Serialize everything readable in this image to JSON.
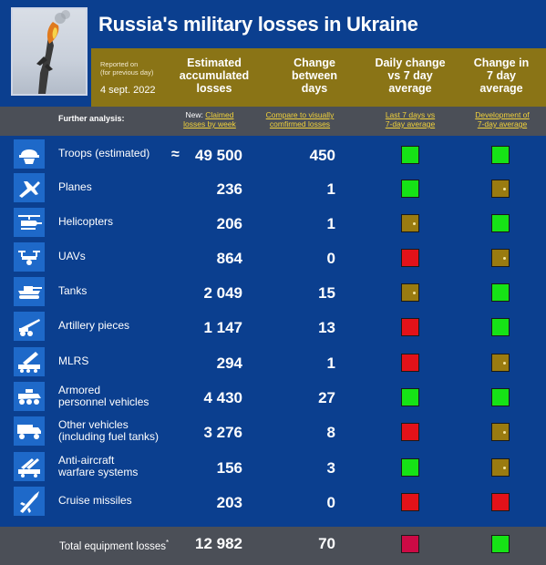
{
  "header": {
    "title": "Russia's military losses in Ukraine",
    "reported_on_line1": "Reported on",
    "reported_on_line2": "(for previous day)",
    "date": "4 sept. 2022",
    "col_estimated_l1": "Estimated",
    "col_estimated_l2": "accumulated",
    "col_estimated_l3": "losses",
    "col_change_l1": "Change",
    "col_change_l2": "between",
    "col_change_l3": "days",
    "col_daily_l1": "Daily change",
    "col_daily_l2": "vs 7 day",
    "col_daily_l3": "average",
    "col_change7_l1": "Change in",
    "col_change7_l2": "7 day",
    "col_change7_l3": "average"
  },
  "further": {
    "label": "Further analysis:",
    "new_prefix": "New:",
    "link1_l1": "Claimed",
    "link1_l2": "losses by week",
    "link2_l1": "Compare to visually",
    "link2_l2": "comfirmed losses",
    "link3_l1": "Last 7 days vs",
    "link3_l2": "7-day average",
    "link4_l1": "Development of",
    "link4_l2": "7-day average"
  },
  "rows": [
    {
      "icon": "soldier-helmet-icon",
      "label1": "Troops (estimated)",
      "label2": "",
      "approx": "≈",
      "value": "49 500",
      "change": "450",
      "daily": "green",
      "trend": "green"
    },
    {
      "icon": "fighter-jet-icon",
      "label1": "Planes",
      "label2": "",
      "approx": "",
      "value": "236",
      "change": "1",
      "daily": "green",
      "trend": "olive"
    },
    {
      "icon": "helicopter-icon",
      "label1": "Helicopters",
      "label2": "",
      "approx": "",
      "value": "206",
      "change": "1",
      "daily": "olive",
      "trend": "green"
    },
    {
      "icon": "drone-icon",
      "label1": "UAVs",
      "label2": "",
      "approx": "",
      "value": "864",
      "change": "0",
      "daily": "red",
      "trend": "olive"
    },
    {
      "icon": "tank-icon",
      "label1": "Tanks",
      "label2": "",
      "approx": "",
      "value": "2 049",
      "change": "15",
      "daily": "olive",
      "trend": "green"
    },
    {
      "icon": "artillery-icon",
      "label1": "Artillery pieces",
      "label2": "",
      "approx": "",
      "value": "1 147",
      "change": "13",
      "daily": "red",
      "trend": "green"
    },
    {
      "icon": "rocket-launcher-icon",
      "label1": "MLRS",
      "label2": "",
      "approx": "",
      "value": "294",
      "change": "1",
      "daily": "red",
      "trend": "olive"
    },
    {
      "icon": "armored-vehicle-icon",
      "label1": "Armored",
      "label2": "personnel vehicles",
      "approx": "",
      "value": "4 430",
      "change": "27",
      "daily": "green",
      "trend": "green"
    },
    {
      "icon": "truck-icon",
      "label1": "Other vehicles",
      "label2": "(including fuel tanks)",
      "approx": "",
      "value": "3 276",
      "change": "8",
      "daily": "red",
      "trend": "olive"
    },
    {
      "icon": "anti-aircraft-icon",
      "label1": "Anti-aircraft",
      "label2": "warfare systems",
      "approx": "",
      "value": "156",
      "change": "3",
      "daily": "green",
      "trend": "olive"
    },
    {
      "icon": "cruise-missile-icon",
      "label1": "Cruise missiles",
      "label2": "",
      "approx": "",
      "value": "203",
      "change": "0",
      "daily": "red",
      "trend": "red"
    }
  ],
  "total": {
    "label": "Total equipment losses",
    "footnote_mark": "*",
    "value": "12 982",
    "change": "70",
    "daily": "magenta",
    "trend": "green"
  },
  "colors": {
    "background": "#0b3f8f",
    "band": "#8a7416",
    "gray_band": "#4b4f57",
    "icon_bg": "#1e69c9",
    "green": "#16e316",
    "red": "#e31219",
    "olive": "#9a7b10",
    "magenta": "#cc0a45",
    "link": "#f2d23a"
  }
}
